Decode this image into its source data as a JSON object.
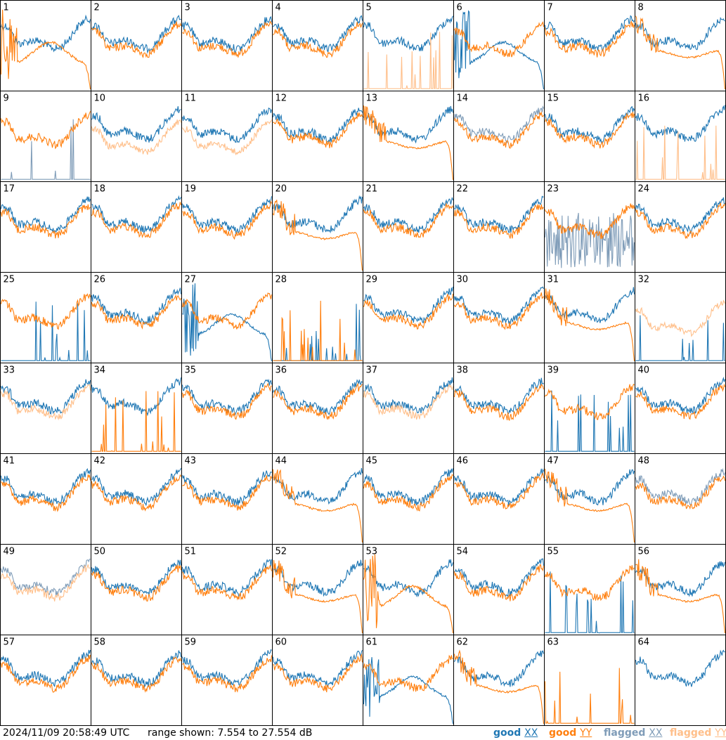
{
  "footer": {
    "timestamp": "2024/11/09 20:58:49 UTC",
    "range_text": "range shown: 7.554 to 27.554 dB"
  },
  "legend": {
    "good_xx": {
      "word": "good",
      "pol": "XX"
    },
    "good_yy": {
      "word": "good",
      "pol": "YY"
    },
    "flagged_xx": {
      "word": "flagged",
      "pol": "XX"
    },
    "flagged_yy": {
      "word": "flagged",
      "pol": "YY"
    }
  },
  "colors": {
    "good_xx": "#1f77b4",
    "good_yy": "#ff7f0e",
    "flagged_xx": "#7f9cb8",
    "flagged_yy": "#ffbf8a"
  },
  "chart_data": {
    "type": "line",
    "layout": "8x8 grid of small-multiple spectra",
    "range_db": [
      7.554,
      27.554
    ],
    "panels": [
      {
        "label": "1",
        "xx": "good",
        "yy": "good",
        "shape_xx": "normal",
        "shape_yy": "decay"
      },
      {
        "label": "2",
        "xx": "good",
        "yy": "good",
        "shape_xx": "normal",
        "shape_yy": "normal"
      },
      {
        "label": "3",
        "xx": "good",
        "yy": "good",
        "shape_xx": "normal",
        "shape_yy": "normal"
      },
      {
        "label": "4",
        "xx": "good",
        "yy": "good",
        "shape_xx": "normal",
        "shape_yy": "normal"
      },
      {
        "label": "5",
        "xx": "good",
        "yy": "flagged",
        "shape_xx": "normal",
        "shape_yy": "spikes"
      },
      {
        "label": "6",
        "xx": "good",
        "yy": "good",
        "shape_xx": "decay",
        "shape_yy": "normal"
      },
      {
        "label": "7",
        "xx": "good",
        "yy": "good",
        "shape_xx": "normal",
        "shape_yy": "normal"
      },
      {
        "label": "8",
        "xx": "good",
        "yy": "good",
        "shape_xx": "normal",
        "shape_yy": "dropoff"
      },
      {
        "label": "9",
        "xx": "flagged",
        "yy": "good",
        "shape_xx": "spikes",
        "shape_yy": "normal"
      },
      {
        "label": "10",
        "xx": "good",
        "yy": "flagged",
        "shape_xx": "normal",
        "shape_yy": "low"
      },
      {
        "label": "11",
        "xx": "good",
        "yy": "flagged",
        "shape_xx": "normal",
        "shape_yy": "low"
      },
      {
        "label": "12",
        "xx": "good",
        "yy": "good",
        "shape_xx": "normal",
        "shape_yy": "normal"
      },
      {
        "label": "13",
        "xx": "good",
        "yy": "good",
        "shape_xx": "normal",
        "shape_yy": "dropoff"
      },
      {
        "label": "14",
        "xx": "flagged",
        "yy": "good",
        "shape_xx": "normal",
        "shape_yy": "normal"
      },
      {
        "label": "15",
        "xx": "good",
        "yy": "good",
        "shape_xx": "normal",
        "shape_yy": "normal"
      },
      {
        "label": "16",
        "xx": "good",
        "yy": "flagged",
        "shape_xx": "normal",
        "shape_yy": "spikes"
      },
      {
        "label": "17",
        "xx": "good",
        "yy": "good",
        "shape_xx": "normal",
        "shape_yy": "normal"
      },
      {
        "label": "18",
        "xx": "good",
        "yy": "good",
        "shape_xx": "normal",
        "shape_yy": "normal"
      },
      {
        "label": "19",
        "xx": "good",
        "yy": "good",
        "shape_xx": "normal",
        "shape_yy": "normal"
      },
      {
        "label": "20",
        "xx": "good",
        "yy": "good",
        "shape_xx": "normal",
        "shape_yy": "dropoff"
      },
      {
        "label": "21",
        "xx": "good",
        "yy": "good",
        "shape_xx": "normal",
        "shape_yy": "normal"
      },
      {
        "label": "22",
        "xx": "good",
        "yy": "good",
        "shape_xx": "normal",
        "shape_yy": "normal"
      },
      {
        "label": "23",
        "xx": "flagged",
        "yy": "good",
        "shape_xx": "noisy",
        "shape_yy": "normal"
      },
      {
        "label": "24",
        "xx": "good",
        "yy": "good",
        "shape_xx": "normal",
        "shape_yy": "normal"
      },
      {
        "label": "25",
        "xx": "good",
        "yy": "good",
        "shape_xx": "spikes",
        "shape_yy": "normal"
      },
      {
        "label": "26",
        "xx": "good",
        "yy": "good",
        "shape_xx": "normal",
        "shape_yy": "normal"
      },
      {
        "label": "27",
        "xx": "good",
        "yy": "good",
        "shape_xx": "decay",
        "shape_yy": "normal"
      },
      {
        "label": "28",
        "xx": "good",
        "yy": "good",
        "shape_xx": "spikes",
        "shape_yy": "spikes"
      },
      {
        "label": "29",
        "xx": "good",
        "yy": "good",
        "shape_xx": "normal",
        "shape_yy": "normal"
      },
      {
        "label": "30",
        "xx": "good",
        "yy": "good",
        "shape_xx": "normal",
        "shape_yy": "normal"
      },
      {
        "label": "31",
        "xx": "good",
        "yy": "good",
        "shape_xx": "normal",
        "shape_yy": "dropoff"
      },
      {
        "label": "32",
        "xx": "good",
        "yy": "flagged",
        "shape_xx": "spikes",
        "shape_yy": "low"
      },
      {
        "label": "33",
        "xx": "good",
        "yy": "flagged",
        "shape_xx": "normal",
        "shape_yy": "normal"
      },
      {
        "label": "34",
        "xx": "good",
        "yy": "good",
        "shape_xx": "normal",
        "shape_yy": "spikes"
      },
      {
        "label": "35",
        "xx": "good",
        "yy": "good",
        "shape_xx": "normal",
        "shape_yy": "normal"
      },
      {
        "label": "36",
        "xx": "good",
        "yy": "good",
        "shape_xx": "normal",
        "shape_yy": "normal"
      },
      {
        "label": "37",
        "xx": "good",
        "yy": "flagged",
        "shape_xx": "normal",
        "shape_yy": "normal"
      },
      {
        "label": "38",
        "xx": "good",
        "yy": "good",
        "shape_xx": "normal",
        "shape_yy": "normal"
      },
      {
        "label": "39",
        "xx": "good",
        "yy": "good",
        "shape_xx": "spikes",
        "shape_yy": "normal"
      },
      {
        "label": "40",
        "xx": "good",
        "yy": "good",
        "shape_xx": "normal",
        "shape_yy": "normal"
      },
      {
        "label": "41",
        "xx": "good",
        "yy": "good",
        "shape_xx": "normal",
        "shape_yy": "normal"
      },
      {
        "label": "42",
        "xx": "good",
        "yy": "good",
        "shape_xx": "normal",
        "shape_yy": "normal"
      },
      {
        "label": "43",
        "xx": "good",
        "yy": "good",
        "shape_xx": "normal",
        "shape_yy": "normal"
      },
      {
        "label": "44",
        "xx": "good",
        "yy": "good",
        "shape_xx": "normal",
        "shape_yy": "dropoff"
      },
      {
        "label": "45",
        "xx": "good",
        "yy": "good",
        "shape_xx": "normal",
        "shape_yy": "normal"
      },
      {
        "label": "46",
        "xx": "good",
        "yy": "good",
        "shape_xx": "normal",
        "shape_yy": "normal"
      },
      {
        "label": "47",
        "xx": "good",
        "yy": "good",
        "shape_xx": "normal",
        "shape_yy": "dropoff"
      },
      {
        "label": "48",
        "xx": "flagged",
        "yy": "good",
        "shape_xx": "normal",
        "shape_yy": "normal"
      },
      {
        "label": "49",
        "xx": "flagged",
        "yy": "flagged",
        "shape_xx": "normal",
        "shape_yy": "normal"
      },
      {
        "label": "50",
        "xx": "good",
        "yy": "good",
        "shape_xx": "normal",
        "shape_yy": "normal"
      },
      {
        "label": "51",
        "xx": "good",
        "yy": "good",
        "shape_xx": "normal",
        "shape_yy": "normal"
      },
      {
        "label": "52",
        "xx": "good",
        "yy": "good",
        "shape_xx": "normal",
        "shape_yy": "dropoff"
      },
      {
        "label": "53",
        "xx": "good",
        "yy": "good",
        "shape_xx": "normal",
        "shape_yy": "decay"
      },
      {
        "label": "54",
        "xx": "good",
        "yy": "good",
        "shape_xx": "normal",
        "shape_yy": "normal"
      },
      {
        "label": "55",
        "xx": "good",
        "yy": "good",
        "shape_xx": "spikes",
        "shape_yy": "normal"
      },
      {
        "label": "56",
        "xx": "good",
        "yy": "good",
        "shape_xx": "normal",
        "shape_yy": "dropoff"
      },
      {
        "label": "57",
        "xx": "good",
        "yy": "good",
        "shape_xx": "normal",
        "shape_yy": "normal"
      },
      {
        "label": "58",
        "xx": "good",
        "yy": "good",
        "shape_xx": "normal",
        "shape_yy": "normal"
      },
      {
        "label": "59",
        "xx": "good",
        "yy": "good",
        "shape_xx": "normal",
        "shape_yy": "normal"
      },
      {
        "label": "60",
        "xx": "good",
        "yy": "good",
        "shape_xx": "normal",
        "shape_yy": "normal"
      },
      {
        "label": "61",
        "xx": "good",
        "yy": "good",
        "shape_xx": "decay",
        "shape_yy": "normal"
      },
      {
        "label": "62",
        "xx": "good",
        "yy": "good",
        "shape_xx": "normal",
        "shape_yy": "dropoff"
      },
      {
        "label": "63",
        "xx": "good",
        "yy": "good",
        "shape_xx": "none",
        "shape_yy": "spikes"
      },
      {
        "label": "64",
        "xx": "good",
        "yy": "good",
        "shape_xx": "normal",
        "shape_yy": "none"
      }
    ]
  }
}
